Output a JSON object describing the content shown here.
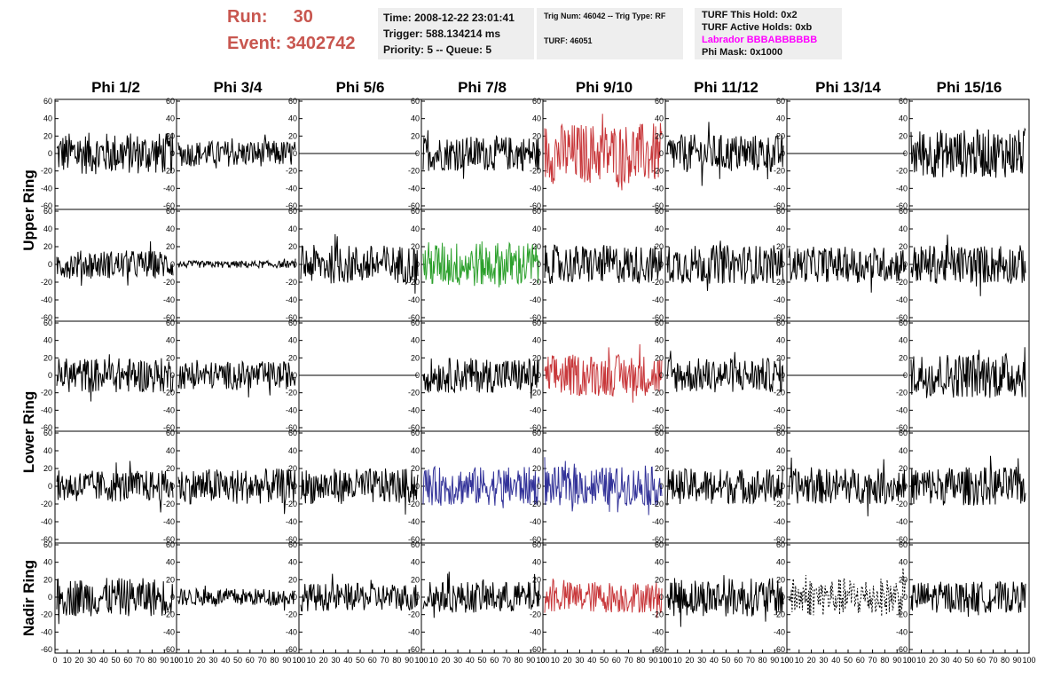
{
  "header": {
    "run_label": "Run:",
    "run_value": "30",
    "event_label": "Event:",
    "event_value": "3402742",
    "time": "Time: 2008-12-22 23:01:41",
    "trigger": "Trigger: 588.134214 ms",
    "priority": "Priority: 5 -- Queue: 5",
    "trig_num": "Trig Num: 46042 -- Trig Type: RF",
    "turf_id": "TURF: 46051",
    "turf_hold": "TURF This Hold: 0x2",
    "turf_active": "TURF Active Holds: 0xb",
    "labrador": "Labrador BBBABBBBBB",
    "phi_mask": "Phi Mask: 0x1000",
    "labrador_color": "#ff00ff",
    "run_color": "#c8564f"
  },
  "chart_data": {
    "type": "line",
    "title": "",
    "columns": [
      "Phi 1/2",
      "Phi 3/4",
      "Phi 5/6",
      "Phi 7/8",
      "Phi 9/10",
      "Phi 11/12",
      "Phi 13/14",
      "Phi 15/16"
    ],
    "ring_labels": [
      "Upper Ring",
      "Lower Ring",
      "Nadir Ring"
    ],
    "row_ring_index": [
      0,
      0,
      1,
      1,
      2
    ],
    "ylim": [
      -60,
      60
    ],
    "xlim": [
      0,
      100
    ],
    "y_ticks": [
      60,
      40,
      20,
      0,
      -20,
      -40,
      -60
    ],
    "x_tick_labels": [
      "0",
      "10",
      "20",
      "30",
      "40",
      "50",
      "60",
      "70",
      "80",
      "90",
      "100"
    ],
    "colors": {
      "black": "#000000",
      "red": "#c8383b",
      "green": "#2ca02c",
      "blue": "#333399"
    },
    "panels": [
      [
        {
          "color": "black",
          "amp": 24
        },
        {
          "color": "black",
          "amp": 15
        },
        {
          "color": "black",
          "amp": 0
        },
        {
          "color": "black",
          "amp": 20
        },
        {
          "color": "red",
          "amp": 35
        },
        {
          "color": "black",
          "amp": 22
        },
        {
          "color": "black",
          "amp": 0
        },
        {
          "color": "black",
          "amp": 28
        }
      ],
      [
        {
          "color": "black",
          "amp": 16
        },
        {
          "color": "black",
          "amp": 4
        },
        {
          "color": "black",
          "amp": 22
        },
        {
          "color": "green",
          "amp": 26
        },
        {
          "color": "black",
          "amp": 22
        },
        {
          "color": "black",
          "amp": 22
        },
        {
          "color": "black",
          "amp": 20
        },
        {
          "color": "black",
          "amp": 22
        }
      ],
      [
        {
          "color": "black",
          "amp": 20
        },
        {
          "color": "black",
          "amp": 16
        },
        {
          "color": "black",
          "amp": 0
        },
        {
          "color": "black",
          "amp": 20
        },
        {
          "color": "red",
          "amp": 24
        },
        {
          "color": "black",
          "amp": 20
        },
        {
          "color": "black",
          "amp": 0
        },
        {
          "color": "black",
          "amp": 26
        }
      ],
      [
        {
          "color": "black",
          "amp": 18
        },
        {
          "color": "black",
          "amp": 20
        },
        {
          "color": "black",
          "amp": 20
        },
        {
          "color": "blue",
          "amp": 22
        },
        {
          "color": "blue",
          "amp": 22
        },
        {
          "color": "black",
          "amp": 20
        },
        {
          "color": "black",
          "amp": 20
        },
        {
          "color": "black",
          "amp": 22
        }
      ],
      [
        {
          "color": "black",
          "amp": 22
        },
        {
          "color": "black",
          "amp": 10
        },
        {
          "color": "black",
          "amp": 16
        },
        {
          "color": "black",
          "amp": 18
        },
        {
          "color": "red",
          "amp": 18
        },
        {
          "color": "black",
          "amp": 22
        },
        {
          "color": "black",
          "amp": 22,
          "dashed": true
        },
        {
          "color": "black",
          "amp": 18
        }
      ]
    ]
  }
}
